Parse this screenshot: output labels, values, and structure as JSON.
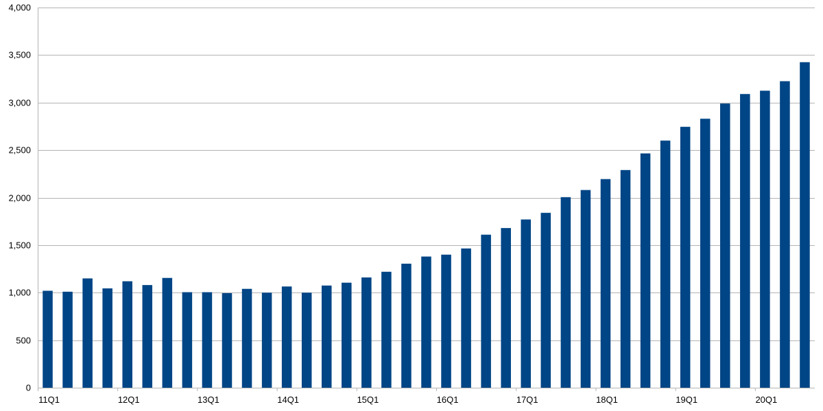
{
  "chart_data": {
    "type": "bar",
    "title": "",
    "xlabel": "",
    "ylabel": "",
    "ylim": [
      0,
      4000
    ],
    "yticks": [
      0,
      500,
      1000,
      1500,
      2000,
      2500,
      3000,
      3500,
      4000
    ],
    "ytick_labels": [
      "0",
      "500",
      "1,000",
      "1,500",
      "2,000",
      "2,500",
      "3,000",
      "3,500",
      "4,000"
    ],
    "grid": true,
    "legend": "none",
    "bar_color": "#004586",
    "categories": [
      "11Q1",
      "11Q2",
      "11Q3",
      "11Q4",
      "12Q1",
      "12Q2",
      "12Q3",
      "12Q4",
      "13Q1",
      "13Q2",
      "13Q3",
      "13Q4",
      "14Q1",
      "14Q2",
      "14Q3",
      "14Q4",
      "15Q1",
      "15Q2",
      "15Q3",
      "15Q4",
      "16Q1",
      "16Q2",
      "16Q3",
      "16Q4",
      "17Q1",
      "17Q2",
      "17Q3",
      "17Q4",
      "18Q1",
      "18Q2",
      "18Q3",
      "18Q4",
      "19Q1",
      "19Q2",
      "19Q3",
      "19Q4",
      "20Q1",
      "20Q2",
      "20Q3"
    ],
    "xtick_labels": [
      "11Q1",
      "12Q1",
      "13Q1",
      "14Q1",
      "15Q1",
      "16Q1",
      "17Q1",
      "18Q1",
      "19Q1",
      "20Q1"
    ],
    "values": [
      1020,
      1010,
      1150,
      1045,
      1120,
      1080,
      1155,
      1005,
      1005,
      995,
      1040,
      1000,
      1065,
      1000,
      1075,
      1105,
      1160,
      1220,
      1305,
      1380,
      1400,
      1465,
      1610,
      1680,
      1770,
      1840,
      2005,
      2080,
      2195,
      2290,
      2465,
      2600,
      2745,
      2830,
      2990,
      3090,
      3125,
      3225,
      3425
    ]
  }
}
